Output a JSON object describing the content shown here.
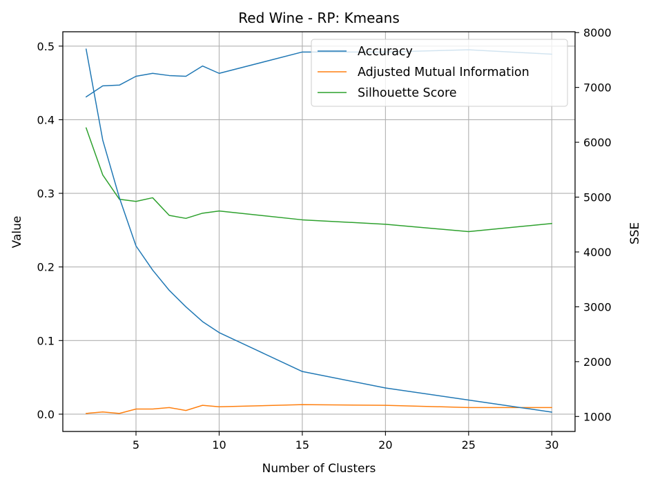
{
  "chart_data": {
    "type": "line",
    "title": "Red Wine - RP: Kmeans",
    "xlabel": "Number of Clusters",
    "ylabel": "Value",
    "y2label": "SSE",
    "xlim": [
      0.6,
      31.4
    ],
    "ylim": [
      -0.0235,
      0.5195
    ],
    "y2lim": [
      727,
      8015
    ],
    "xticks": [
      5,
      10,
      15,
      20,
      25,
      30
    ],
    "yticks": [
      0.0,
      0.1,
      0.2,
      0.3,
      0.4,
      0.5
    ],
    "y2ticks": [
      1000,
      2000,
      3000,
      4000,
      5000,
      6000,
      7000,
      8000
    ],
    "grid": true,
    "legend_position": "top-right",
    "x": [
      2,
      3,
      4,
      5,
      6,
      7,
      8,
      9,
      10,
      15,
      20,
      25,
      30
    ],
    "series": [
      {
        "name": "Accuracy",
        "axis": "left",
        "color": "#1f77b4",
        "values": [
          0.431,
          0.446,
          0.447,
          0.459,
          0.463,
          0.46,
          0.459,
          0.473,
          0.463,
          0.492,
          0.492,
          0.495,
          0.489
        ]
      },
      {
        "name": "Adjusted Mutual Information",
        "axis": "left",
        "color": "#ff7f0e",
        "values": [
          0.001,
          0.003,
          0.001,
          0.007,
          0.007,
          0.009,
          0.005,
          0.012,
          0.01,
          0.013,
          0.012,
          0.009,
          0.009
        ]
      },
      {
        "name": "Silhouette Score",
        "axis": "left",
        "color": "#2ca02c",
        "values": [
          0.389,
          0.325,
          0.292,
          0.289,
          0.294,
          0.27,
          0.266,
          0.273,
          0.276,
          0.264,
          0.258,
          0.248,
          0.259
        ]
      },
      {
        "axis": "right",
        "color": "#1f77b4",
        "values": [
          7700,
          6040,
          4990,
          4110,
          3670,
          3300,
          3000,
          2730,
          2530,
          1820,
          1520,
          1300,
          1080
        ]
      }
    ]
  }
}
